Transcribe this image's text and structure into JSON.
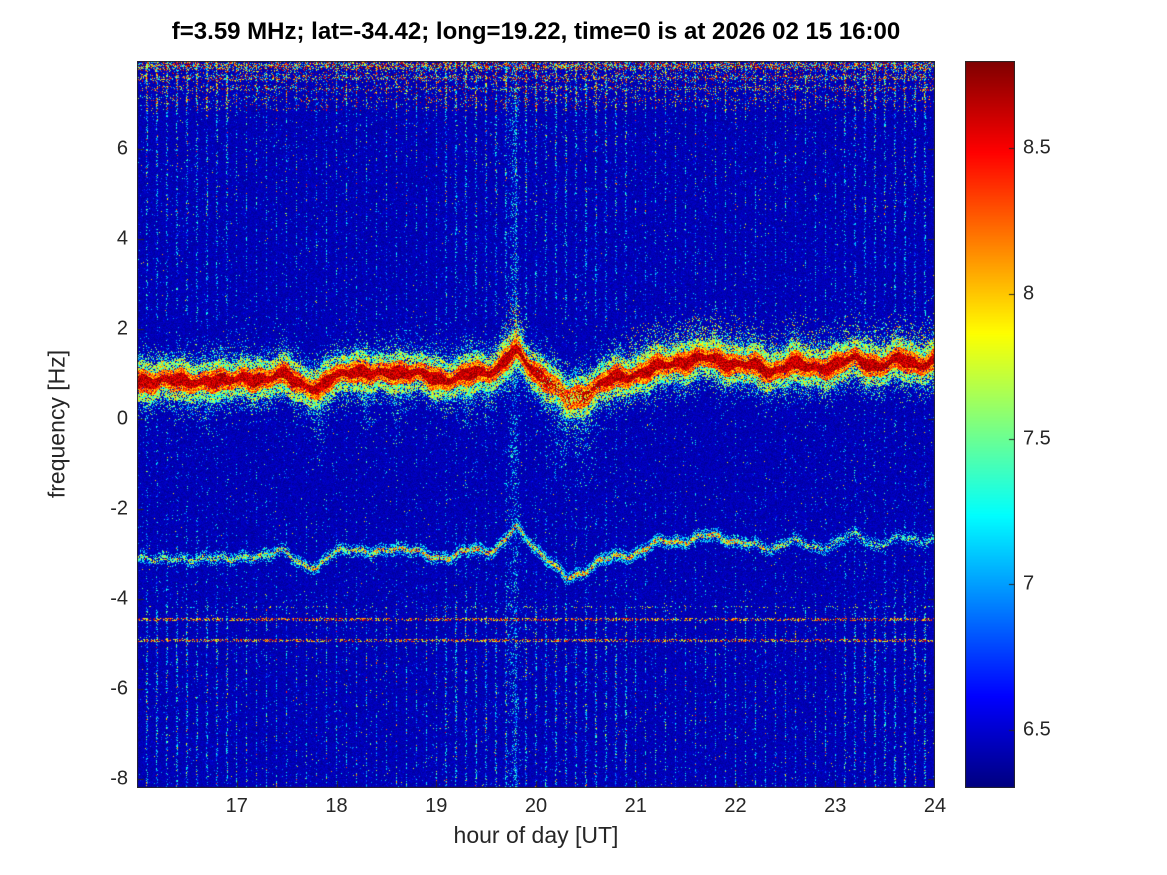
{
  "chart_data": {
    "type": "heatmap",
    "title": "f=3.59 MHz;  lat=-34.42; long=19.22, time=0 is at 2026 02 15 16:00",
    "xlabel": "hour of day [UT]",
    "ylabel": "frequency [Hz]",
    "xlim": [
      16,
      24
    ],
    "ylim": [
      -8.2,
      7.95
    ],
    "x_ticks": [
      17,
      18,
      19,
      20,
      21,
      22,
      23,
      24
    ],
    "y_ticks": [
      6,
      4,
      2,
      0,
      -2,
      -4,
      -6,
      -8
    ],
    "grid": false,
    "colormap": "jet",
    "colorbar": {
      "min": 6.3,
      "max": 8.8,
      "ticks": [
        8.5,
        8,
        7.5,
        7,
        6.5
      ],
      "position": "right"
    },
    "features": {
      "seed": 1337,
      "background_level": 6.36,
      "background_noise_span": 0.14,
      "vertical_stripe_period_hours": 0.1,
      "disturbance_column_hour": 19.78,
      "top_speckle_min_freq": 6.85,
      "top_speckle_rows": [
        7.84,
        7.58,
        7.34,
        7.1
      ],
      "interference_lines": [
        {
          "freq": -4.45,
          "half_width": 0.035,
          "density": 0.42,
          "v0": 7.6,
          "dv": 1.15
        },
        {
          "freq": -4.93,
          "half_width": 0.035,
          "density": 0.4,
          "v0": 7.5,
          "dv": 1.2
        },
        {
          "freq": -4.18,
          "half_width": 0.03,
          "density": 0.1,
          "v0": 7.2,
          "dv": 0.9
        }
      ],
      "main_band": {
        "peak_value": 8.85,
        "core_half_width": 0.11,
        "weak_spot_hour": 20.32,
        "keypoints": [
          [
            16.0,
            0.78
          ],
          [
            16.25,
            0.9
          ],
          [
            16.5,
            0.78
          ],
          [
            16.7,
            0.88
          ],
          [
            16.9,
            0.8
          ],
          [
            17.1,
            0.95
          ],
          [
            17.3,
            0.85
          ],
          [
            17.5,
            1.0
          ],
          [
            17.65,
            0.8
          ],
          [
            17.82,
            0.6
          ],
          [
            18.0,
            1.0
          ],
          [
            18.15,
            1.1
          ],
          [
            18.35,
            0.95
          ],
          [
            18.55,
            1.08
          ],
          [
            18.75,
            1.0
          ],
          [
            19.0,
            0.92
          ],
          [
            19.2,
            0.88
          ],
          [
            19.4,
            1.02
          ],
          [
            19.6,
            1.1
          ],
          [
            19.72,
            1.35
          ],
          [
            19.8,
            1.5
          ],
          [
            19.88,
            1.3
          ],
          [
            20.0,
            1.05
          ],
          [
            20.15,
            0.8
          ],
          [
            20.3,
            0.42
          ],
          [
            20.45,
            0.5
          ],
          [
            20.6,
            0.72
          ],
          [
            20.8,
            0.9
          ],
          [
            21.0,
            1.0
          ],
          [
            21.2,
            1.12
          ],
          [
            21.45,
            1.28
          ],
          [
            21.7,
            1.33
          ],
          [
            21.95,
            1.25
          ],
          [
            22.15,
            1.18
          ],
          [
            22.35,
            1.05
          ],
          [
            22.55,
            1.22
          ],
          [
            22.75,
            1.12
          ],
          [
            23.0,
            1.2
          ],
          [
            23.2,
            1.32
          ],
          [
            23.45,
            1.18
          ],
          [
            23.65,
            1.3
          ],
          [
            23.85,
            1.22
          ],
          [
            24.0,
            1.3
          ]
        ]
      },
      "mirror_band": {
        "offset": -3.95,
        "core_half_width": 0.055,
        "typical_value": 7.6
      },
      "up_plume_hour": 19.78,
      "down_plumes": [
        [
          16.7,
          0.05,
          1.2
        ],
        [
          17.82,
          0.06,
          1.8
        ],
        [
          18.3,
          0.06,
          1.4
        ],
        [
          18.62,
          0.06,
          1.6
        ],
        [
          19.3,
          0.08,
          1.2
        ],
        [
          19.5,
          0.07,
          1.3
        ],
        [
          20.25,
          0.1,
          2.2
        ],
        [
          20.5,
          0.09,
          2.0
        ]
      ]
    }
  }
}
